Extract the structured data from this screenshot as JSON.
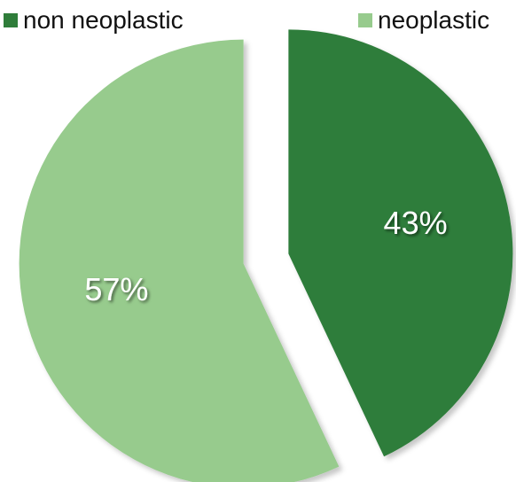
{
  "chart_data": {
    "type": "pie",
    "categories": [
      "non neoplastic",
      "neoplastic"
    ],
    "values": [
      43,
      57
    ],
    "data_labels": [
      "43%",
      "57%"
    ],
    "colors": [
      "#2f7d3a",
      "#97cb8d"
    ],
    "exploded": true,
    "start_angle_deg": 0,
    "direction": "clockwise",
    "legend": {
      "placement": "top",
      "items": [
        {
          "label": "non neoplastic",
          "color": "#2f7d3a"
        },
        {
          "label": "neoplastic",
          "color": "#97cb8d"
        }
      ]
    }
  }
}
